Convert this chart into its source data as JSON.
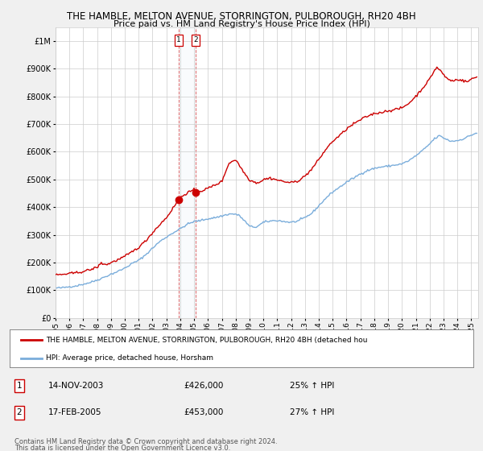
{
  "title": "THE HAMBLE, MELTON AVENUE, STORRINGTON, PULBOROUGH, RH20 4BH",
  "subtitle": "Price paid vs. HM Land Registry's House Price Index (HPI)",
  "legend_line1": "THE HAMBLE, MELTON AVENUE, STORRINGTON, PULBOROUGH, RH20 4BH (detached hou",
  "legend_line2": "HPI: Average price, detached house, Horsham",
  "sale1_date": "14-NOV-2003",
  "sale1_price": "£426,000",
  "sale1_hpi": "25% ↑ HPI",
  "sale2_date": "17-FEB-2005",
  "sale2_price": "£453,000",
  "sale2_hpi": "27% ↑ HPI",
  "footnote1": "Contains HM Land Registry data © Crown copyright and database right 2024.",
  "footnote2": "This data is licensed under the Open Government Licence v3.0.",
  "red_color": "#cc0000",
  "blue_color": "#7aaddb",
  "background_color": "#f0f0f0",
  "plot_bg_color": "#ffffff",
  "vline1_x": 2003.87,
  "vline2_x": 2005.12,
  "sale1_year": 2003.87,
  "sale1_value": 426000,
  "sale2_year": 2005.12,
  "sale2_value": 453000,
  "ylim_max": 1050000,
  "ylim_min": 0,
  "xlim_min": 1995.0,
  "xlim_max": 2025.5,
  "hpi_anchors": [
    [
      1995.0,
      108000
    ],
    [
      1995.5,
      109000
    ],
    [
      1996.0,
      113000
    ],
    [
      1996.5,
      116000
    ],
    [
      1997.0,
      122000
    ],
    [
      1997.5,
      128000
    ],
    [
      1998.0,
      137000
    ],
    [
      1998.5,
      147000
    ],
    [
      1999.0,
      158000
    ],
    [
      1999.5,
      168000
    ],
    [
      2000.0,
      180000
    ],
    [
      2000.5,
      196000
    ],
    [
      2001.0,
      208000
    ],
    [
      2001.5,
      228000
    ],
    [
      2002.0,
      252000
    ],
    [
      2002.5,
      275000
    ],
    [
      2003.0,
      292000
    ],
    [
      2003.5,
      308000
    ],
    [
      2004.0,
      322000
    ],
    [
      2004.5,
      338000
    ],
    [
      2005.0,
      348000
    ],
    [
      2005.5,
      352000
    ],
    [
      2006.0,
      358000
    ],
    [
      2006.5,
      362000
    ],
    [
      2007.0,
      368000
    ],
    [
      2007.5,
      375000
    ],
    [
      2008.0,
      375000
    ],
    [
      2008.3,
      368000
    ],
    [
      2008.8,
      342000
    ],
    [
      2009.0,
      330000
    ],
    [
      2009.5,
      328000
    ],
    [
      2010.0,
      345000
    ],
    [
      2010.5,
      350000
    ],
    [
      2011.0,
      352000
    ],
    [
      2011.5,
      348000
    ],
    [
      2012.0,
      345000
    ],
    [
      2012.5,
      350000
    ],
    [
      2013.0,
      362000
    ],
    [
      2013.5,
      378000
    ],
    [
      2014.0,
      405000
    ],
    [
      2014.5,
      432000
    ],
    [
      2015.0,
      455000
    ],
    [
      2015.5,
      472000
    ],
    [
      2016.0,
      490000
    ],
    [
      2016.5,
      505000
    ],
    [
      2017.0,
      520000
    ],
    [
      2017.5,
      532000
    ],
    [
      2018.0,
      540000
    ],
    [
      2018.5,
      545000
    ],
    [
      2019.0,
      548000
    ],
    [
      2019.5,
      552000
    ],
    [
      2020.0,
      556000
    ],
    [
      2020.5,
      568000
    ],
    [
      2021.0,
      585000
    ],
    [
      2021.5,
      605000
    ],
    [
      2022.0,
      628000
    ],
    [
      2022.3,
      645000
    ],
    [
      2022.7,
      658000
    ],
    [
      2023.0,
      650000
    ],
    [
      2023.5,
      638000
    ],
    [
      2024.0,
      640000
    ],
    [
      2024.5,
      648000
    ],
    [
      2025.0,
      660000
    ],
    [
      2025.4,
      668000
    ]
  ],
  "price_anchors": [
    [
      1995.0,
      155000
    ],
    [
      1995.5,
      157000
    ],
    [
      1996.0,
      160000
    ],
    [
      1996.5,
      163000
    ],
    [
      1997.0,
      168000
    ],
    [
      1997.5,
      174000
    ],
    [
      1998.0,
      183000
    ],
    [
      1998.3,
      198000
    ],
    [
      1998.7,
      192000
    ],
    [
      1999.0,
      200000
    ],
    [
      1999.5,
      210000
    ],
    [
      2000.0,
      222000
    ],
    [
      2000.5,
      238000
    ],
    [
      2001.0,
      255000
    ],
    [
      2001.5,
      278000
    ],
    [
      2002.0,
      308000
    ],
    [
      2002.5,
      336000
    ],
    [
      2003.0,
      362000
    ],
    [
      2003.5,
      398000
    ],
    [
      2003.87,
      426000
    ],
    [
      2004.0,
      435000
    ],
    [
      2004.5,
      452000
    ],
    [
      2005.0,
      462000
    ],
    [
      2005.12,
      453000
    ],
    [
      2005.5,
      458000
    ],
    [
      2006.0,
      468000
    ],
    [
      2006.5,
      480000
    ],
    [
      2007.0,
      492000
    ],
    [
      2007.5,
      558000
    ],
    [
      2008.0,
      572000
    ],
    [
      2008.3,
      548000
    ],
    [
      2008.7,
      518000
    ],
    [
      2009.0,
      498000
    ],
    [
      2009.5,
      488000
    ],
    [
      2009.8,
      492000
    ],
    [
      2010.0,
      500000
    ],
    [
      2010.5,
      505000
    ],
    [
      2011.0,
      498000
    ],
    [
      2011.5,
      492000
    ],
    [
      2012.0,
      488000
    ],
    [
      2012.5,
      495000
    ],
    [
      2013.0,
      512000
    ],
    [
      2013.5,
      538000
    ],
    [
      2014.0,
      572000
    ],
    [
      2014.5,
      608000
    ],
    [
      2015.0,
      638000
    ],
    [
      2015.5,
      658000
    ],
    [
      2016.0,
      682000
    ],
    [
      2016.5,
      700000
    ],
    [
      2017.0,
      715000
    ],
    [
      2017.5,
      728000
    ],
    [
      2018.0,
      738000
    ],
    [
      2018.5,
      742000
    ],
    [
      2019.0,
      748000
    ],
    [
      2019.5,
      752000
    ],
    [
      2020.0,
      758000
    ],
    [
      2020.5,
      775000
    ],
    [
      2021.0,
      800000
    ],
    [
      2021.5,
      830000
    ],
    [
      2022.0,
      862000
    ],
    [
      2022.3,
      890000
    ],
    [
      2022.5,
      905000
    ],
    [
      2022.8,
      892000
    ],
    [
      2023.0,
      878000
    ],
    [
      2023.3,
      862000
    ],
    [
      2023.7,
      855000
    ],
    [
      2024.0,
      862000
    ],
    [
      2024.3,
      858000
    ],
    [
      2024.7,
      852000
    ],
    [
      2025.0,
      862000
    ],
    [
      2025.4,
      870000
    ]
  ]
}
